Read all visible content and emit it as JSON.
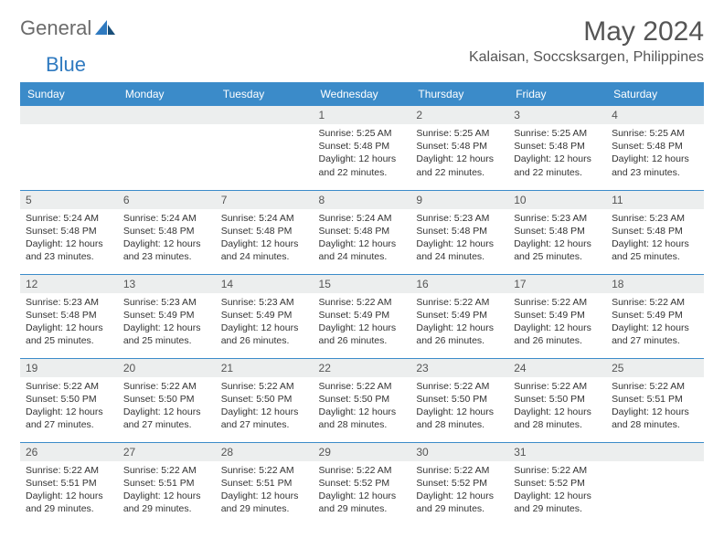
{
  "logo": {
    "text1": "General",
    "text2": "Blue"
  },
  "title": "May 2024",
  "location": "Kalaisan, Soccsksargen, Philippines",
  "colors": {
    "header_bg": "#3b8bc9",
    "header_text": "#ffffff",
    "daynum_bg": "#eceeee",
    "text": "#555555",
    "row_border": "#3b8bc9",
    "logo_blue": "#2f7ac0"
  },
  "weekdays": [
    "Sunday",
    "Monday",
    "Tuesday",
    "Wednesday",
    "Thursday",
    "Friday",
    "Saturday"
  ],
  "weeks": [
    [
      null,
      null,
      null,
      {
        "n": "1",
        "sr": "5:25 AM",
        "ss": "5:48 PM",
        "dl": "12 hours and 22 minutes."
      },
      {
        "n": "2",
        "sr": "5:25 AM",
        "ss": "5:48 PM",
        "dl": "12 hours and 22 minutes."
      },
      {
        "n": "3",
        "sr": "5:25 AM",
        "ss": "5:48 PM",
        "dl": "12 hours and 22 minutes."
      },
      {
        "n": "4",
        "sr": "5:25 AM",
        "ss": "5:48 PM",
        "dl": "12 hours and 23 minutes."
      }
    ],
    [
      {
        "n": "5",
        "sr": "5:24 AM",
        "ss": "5:48 PM",
        "dl": "12 hours and 23 minutes."
      },
      {
        "n": "6",
        "sr": "5:24 AM",
        "ss": "5:48 PM",
        "dl": "12 hours and 23 minutes."
      },
      {
        "n": "7",
        "sr": "5:24 AM",
        "ss": "5:48 PM",
        "dl": "12 hours and 24 minutes."
      },
      {
        "n": "8",
        "sr": "5:24 AM",
        "ss": "5:48 PM",
        "dl": "12 hours and 24 minutes."
      },
      {
        "n": "9",
        "sr": "5:23 AM",
        "ss": "5:48 PM",
        "dl": "12 hours and 24 minutes."
      },
      {
        "n": "10",
        "sr": "5:23 AM",
        "ss": "5:48 PM",
        "dl": "12 hours and 25 minutes."
      },
      {
        "n": "11",
        "sr": "5:23 AM",
        "ss": "5:48 PM",
        "dl": "12 hours and 25 minutes."
      }
    ],
    [
      {
        "n": "12",
        "sr": "5:23 AM",
        "ss": "5:48 PM",
        "dl": "12 hours and 25 minutes."
      },
      {
        "n": "13",
        "sr": "5:23 AM",
        "ss": "5:49 PM",
        "dl": "12 hours and 25 minutes."
      },
      {
        "n": "14",
        "sr": "5:23 AM",
        "ss": "5:49 PM",
        "dl": "12 hours and 26 minutes."
      },
      {
        "n": "15",
        "sr": "5:22 AM",
        "ss": "5:49 PM",
        "dl": "12 hours and 26 minutes."
      },
      {
        "n": "16",
        "sr": "5:22 AM",
        "ss": "5:49 PM",
        "dl": "12 hours and 26 minutes."
      },
      {
        "n": "17",
        "sr": "5:22 AM",
        "ss": "5:49 PM",
        "dl": "12 hours and 26 minutes."
      },
      {
        "n": "18",
        "sr": "5:22 AM",
        "ss": "5:49 PM",
        "dl": "12 hours and 27 minutes."
      }
    ],
    [
      {
        "n": "19",
        "sr": "5:22 AM",
        "ss": "5:50 PM",
        "dl": "12 hours and 27 minutes."
      },
      {
        "n": "20",
        "sr": "5:22 AM",
        "ss": "5:50 PM",
        "dl": "12 hours and 27 minutes."
      },
      {
        "n": "21",
        "sr": "5:22 AM",
        "ss": "5:50 PM",
        "dl": "12 hours and 27 minutes."
      },
      {
        "n": "22",
        "sr": "5:22 AM",
        "ss": "5:50 PM",
        "dl": "12 hours and 28 minutes."
      },
      {
        "n": "23",
        "sr": "5:22 AM",
        "ss": "5:50 PM",
        "dl": "12 hours and 28 minutes."
      },
      {
        "n": "24",
        "sr": "5:22 AM",
        "ss": "5:50 PM",
        "dl": "12 hours and 28 minutes."
      },
      {
        "n": "25",
        "sr": "5:22 AM",
        "ss": "5:51 PM",
        "dl": "12 hours and 28 minutes."
      }
    ],
    [
      {
        "n": "26",
        "sr": "5:22 AM",
        "ss": "5:51 PM",
        "dl": "12 hours and 29 minutes."
      },
      {
        "n": "27",
        "sr": "5:22 AM",
        "ss": "5:51 PM",
        "dl": "12 hours and 29 minutes."
      },
      {
        "n": "28",
        "sr": "5:22 AM",
        "ss": "5:51 PM",
        "dl": "12 hours and 29 minutes."
      },
      {
        "n": "29",
        "sr": "5:22 AM",
        "ss": "5:52 PM",
        "dl": "12 hours and 29 minutes."
      },
      {
        "n": "30",
        "sr": "5:22 AM",
        "ss": "5:52 PM",
        "dl": "12 hours and 29 minutes."
      },
      {
        "n": "31",
        "sr": "5:22 AM",
        "ss": "5:52 PM",
        "dl": "12 hours and 29 minutes."
      },
      null
    ]
  ],
  "labels": {
    "sunrise": "Sunrise:",
    "sunset": "Sunset:",
    "daylight": "Daylight:"
  }
}
